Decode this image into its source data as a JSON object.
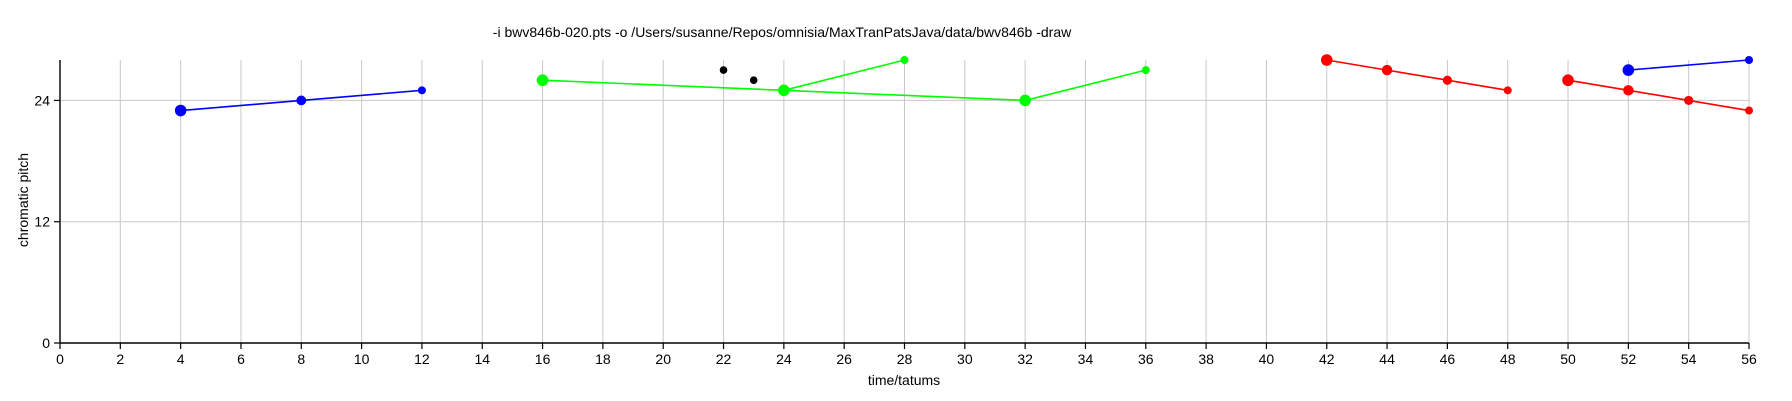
{
  "chart_data": {
    "type": "scatter",
    "title": "-i bwv846b-020.pts -o /Users/susanne/Repos/omnisia/MaxTranPatsJava/data/bwv846b -draw",
    "xlabel": "time/tatums",
    "ylabel": "chromatic pitch",
    "xlim": [
      0,
      56
    ],
    "ylim": [
      0,
      28
    ],
    "xticks": [
      0,
      2,
      4,
      6,
      8,
      10,
      12,
      14,
      16,
      18,
      20,
      22,
      24,
      26,
      28,
      30,
      32,
      34,
      36,
      38,
      40,
      42,
      44,
      46,
      48,
      50,
      52,
      54,
      56
    ],
    "yticks": [
      0,
      12,
      24
    ],
    "grid": true,
    "series": [
      {
        "color": "#0000ff",
        "values": [
          {
            "x": 4,
            "y": 23
          },
          {
            "x": 8,
            "y": 24
          },
          {
            "x": 12,
            "y": 25
          }
        ]
      },
      {
        "color": "#00ff00",
        "values": [
          {
            "x": 16,
            "y": 26
          },
          {
            "x": 24,
            "y": 25
          },
          {
            "x": 32,
            "y": 24
          }
        ]
      },
      {
        "color": "#00ff00",
        "values": [
          {
            "x": 24,
            "y": 25
          },
          {
            "x": 28,
            "y": 28
          }
        ]
      },
      {
        "color": "#00ff00",
        "values": [
          {
            "x": 32,
            "y": 24
          },
          {
            "x": 36,
            "y": 27
          }
        ]
      },
      {
        "color": "#ff0000",
        "values": [
          {
            "x": 42,
            "y": 28
          },
          {
            "x": 44,
            "y": 27
          },
          {
            "x": 46,
            "y": 26
          },
          {
            "x": 48,
            "y": 25
          }
        ]
      },
      {
        "color": "#ff0000",
        "values": [
          {
            "x": 50,
            "y": 26
          },
          {
            "x": 52,
            "y": 25
          },
          {
            "x": 54,
            "y": 24
          },
          {
            "x": 56,
            "y": 23
          }
        ]
      },
      {
        "color": "#0000ff",
        "values": [
          {
            "x": 52,
            "y": 27
          },
          {
            "x": 56,
            "y": 28
          }
        ]
      },
      {
        "color": "#000000",
        "line": false,
        "values": [
          {
            "x": 22,
            "y": 27
          },
          {
            "x": 23,
            "y": 26
          }
        ]
      }
    ]
  }
}
